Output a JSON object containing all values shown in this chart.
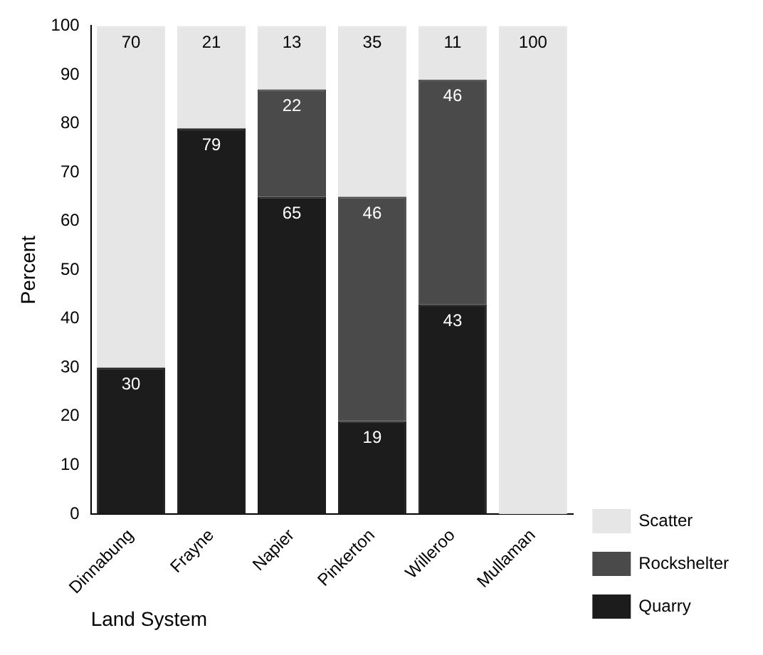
{
  "chart_data": {
    "type": "bar",
    "stacked": true,
    "xlabel": "Land System",
    "ylabel": "Percent",
    "categories": [
      "Dinnabung",
      "Frayne",
      "Napier",
      "Pinkerton",
      "Willeroo",
      "Mullaman"
    ],
    "series": [
      {
        "name": "Quarry",
        "color": "#1c1c1c",
        "values": [
          30,
          79,
          65,
          19,
          43,
          0
        ],
        "value_labels": [
          "30",
          "79",
          "65",
          "19",
          "43",
          null
        ]
      },
      {
        "name": "Rockshelter",
        "color": "#4a4a4a",
        "values": [
          0,
          0,
          22,
          46,
          46,
          0
        ],
        "value_labels": [
          null,
          null,
          "22",
          "46",
          "46",
          null
        ]
      },
      {
        "name": "Scatter",
        "color": "#e6e6e6",
        "values": [
          70,
          21,
          13,
          35,
          11,
          100
        ],
        "value_labels": [
          "70",
          "21",
          "13",
          "35",
          "11",
          "100"
        ]
      }
    ],
    "ylim": [
      0,
      100
    ],
    "yticks": [
      0,
      10,
      20,
      30,
      40,
      50,
      60,
      70,
      80,
      90,
      100
    ],
    "grid": false,
    "legend": "bottom right"
  }
}
